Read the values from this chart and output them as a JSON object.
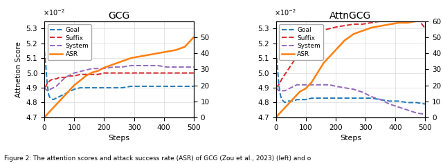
{
  "title_left": "GCG",
  "title_right": "AttnGCG",
  "ylabel_left": "Attnetion Score",
  "ylabel_right": "ASR",
  "xlabel": "Steps",
  "ylim_attn": [
    0.047,
    0.0535
  ],
  "ylim_asr": [
    0,
    60
  ],
  "xlim": [
    0,
    500
  ],
  "xticks": [
    0,
    100,
    200,
    300,
    400,
    500
  ],
  "yticks_attn": [
    0.047,
    0.048,
    0.049,
    0.05,
    0.051,
    0.052,
    0.053
  ],
  "yticks_asr_left": [
    0,
    10,
    20,
    30,
    40,
    50
  ],
  "yticks_asr_right": [
    0,
    10,
    20,
    30,
    40,
    50,
    60
  ],
  "gcg": {
    "steps": [
      0,
      5,
      10,
      15,
      20,
      30,
      40,
      50,
      60,
      70,
      80,
      90,
      100,
      120,
      140,
      160,
      180,
      200,
      230,
      260,
      290,
      320,
      350,
      380,
      410,
      440,
      470,
      500
    ],
    "goal": [
      0.0515,
      0.0505,
      0.0492,
      0.0485,
      0.0483,
      0.0482,
      0.0483,
      0.0484,
      0.0485,
      0.0486,
      0.0487,
      0.0488,
      0.0489,
      0.049,
      0.049,
      0.049,
      0.049,
      0.049,
      0.049,
      0.049,
      0.0491,
      0.0491,
      0.0491,
      0.0491,
      0.0491,
      0.0491,
      0.0491,
      0.0491
    ],
    "suffix": [
      0.049,
      0.0491,
      0.0493,
      0.0494,
      0.0495,
      0.0496,
      0.0496,
      0.0497,
      0.0497,
      0.0497,
      0.0498,
      0.0498,
      0.0498,
      0.0499,
      0.0499,
      0.0499,
      0.0499,
      0.05,
      0.05,
      0.05,
      0.05,
      0.05,
      0.05,
      0.05,
      0.05,
      0.05,
      0.05,
      0.05
    ],
    "system": [
      0.049,
      0.0489,
      0.0488,
      0.0488,
      0.0489,
      0.049,
      0.0491,
      0.0493,
      0.0495,
      0.0497,
      0.0498,
      0.0499,
      0.05,
      0.0501,
      0.0502,
      0.0503,
      0.0503,
      0.0503,
      0.0504,
      0.0504,
      0.0505,
      0.0505,
      0.0505,
      0.0505,
      0.0504,
      0.0504,
      0.0504,
      0.0504
    ],
    "asr": [
      0,
      1,
      2,
      3,
      4,
      6,
      8,
      10,
      12,
      14,
      16,
      18,
      20,
      23,
      26,
      28,
      29,
      31,
      33,
      35,
      37,
      38,
      39,
      40,
      41,
      42,
      44,
      50
    ]
  },
  "attngcg": {
    "steps": [
      0,
      5,
      10,
      15,
      20,
      30,
      40,
      50,
      60,
      70,
      80,
      90,
      100,
      120,
      140,
      160,
      180,
      200,
      230,
      260,
      290,
      320,
      350,
      380,
      410,
      440,
      470,
      500
    ],
    "goal": [
      0.0515,
      0.0505,
      0.0492,
      0.0485,
      0.0482,
      0.048,
      0.0481,
      0.0481,
      0.0481,
      0.0482,
      0.0482,
      0.0482,
      0.0482,
      0.0483,
      0.0483,
      0.0483,
      0.0483,
      0.0483,
      0.0483,
      0.0483,
      0.0483,
      0.0483,
      0.0482,
      0.0481,
      0.0481,
      0.048,
      0.048,
      0.0479
    ],
    "suffix": [
      0.049,
      0.0491,
      0.0492,
      0.0494,
      0.0496,
      0.0499,
      0.0502,
      0.0505,
      0.0508,
      0.0511,
      0.0514,
      0.0517,
      0.052,
      0.0524,
      0.0527,
      0.0529,
      0.053,
      0.0531,
      0.0532,
      0.0533,
      0.0533,
      0.0534,
      0.0535,
      0.0536,
      0.0537,
      0.0537,
      0.0538,
      0.053
    ],
    "system": [
      0.049,
      0.0489,
      0.0488,
      0.0488,
      0.0488,
      0.0488,
      0.0489,
      0.049,
      0.0491,
      0.0492,
      0.0492,
      0.0492,
      0.0492,
      0.0492,
      0.0492,
      0.0492,
      0.0492,
      0.0491,
      0.049,
      0.0489,
      0.0487,
      0.0484,
      0.0482,
      0.0479,
      0.0477,
      0.0475,
      0.0473,
      0.0472
    ],
    "asr": [
      0,
      1,
      2,
      3,
      4,
      6,
      8,
      10,
      12,
      14,
      16,
      17,
      18,
      22,
      28,
      34,
      38,
      42,
      48,
      52,
      54,
      56,
      57,
      58,
      59,
      59,
      60,
      60
    ]
  },
  "color_goal": "#1f77b4",
  "color_suffix": "#d62728",
  "color_system": "#9467bd",
  "color_asr": "#ff7f0e",
  "caption": "Figure 2: The attention scores and attack success rate (ASR) of GCG (Zou et al., 2023) (left) and o"
}
